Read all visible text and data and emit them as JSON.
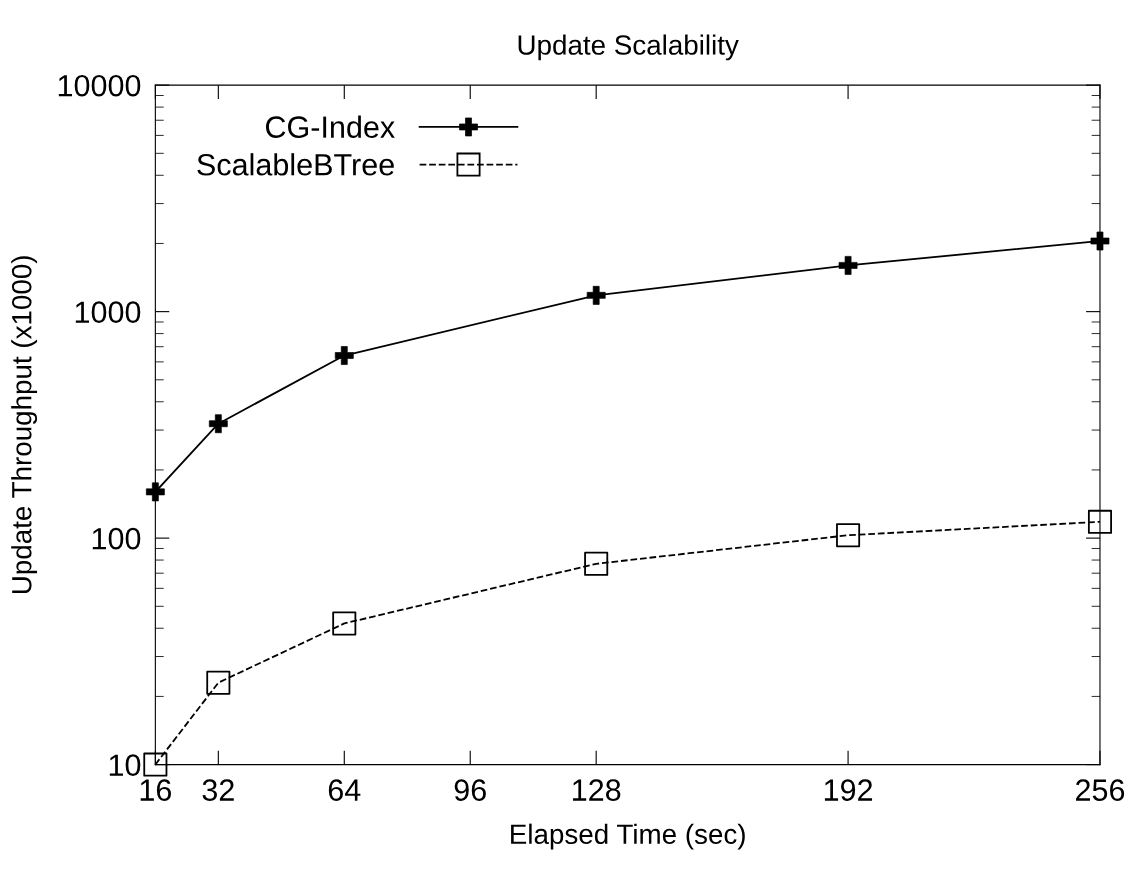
{
  "chart_data": {
    "type": "line",
    "title": "Update Scalability",
    "xlabel": "Elapsed Time (sec)",
    "ylabel": "Update Throughput (x1000)",
    "x": [
      16,
      32,
      64,
      128,
      192,
      256
    ],
    "series": [
      {
        "name": "CG-Index",
        "color": "#000000",
        "marker": "cross",
        "line_style": "solid",
        "values": [
          160,
          320,
          640,
          1180,
          1600,
          2050
        ]
      },
      {
        "name": "ScalableBTree",
        "color": "#000000",
        "marker": "square",
        "line_style": "dashed",
        "values": [
          10,
          23,
          42,
          77,
          103,
          118
        ]
      }
    ],
    "xlim": [
      16,
      256
    ],
    "xticks": [
      16,
      32,
      64,
      96,
      128,
      192,
      256
    ],
    "ylim": [
      10,
      10000
    ],
    "yticks": [
      10,
      100,
      1000,
      10000
    ],
    "log": "y",
    "grid": false,
    "legend": "top left"
  }
}
